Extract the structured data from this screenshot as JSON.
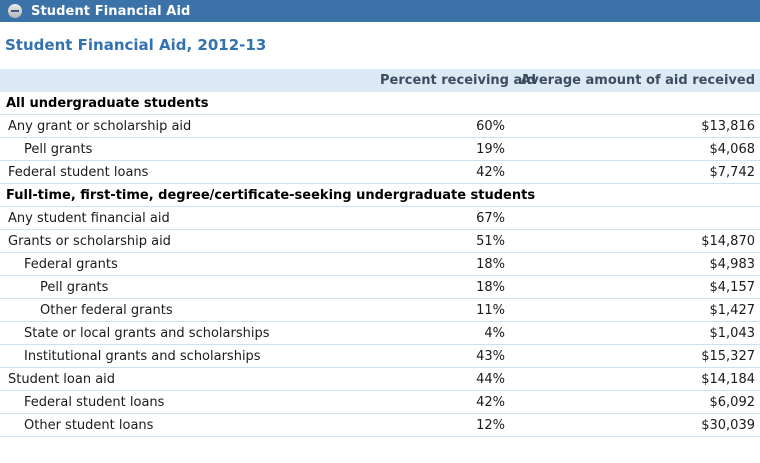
{
  "collapse_bar": {
    "label": "Student Financial Aid",
    "icon": "circle-minus-collapse-icon"
  },
  "page": {
    "title": "Student Financial Aid, 2012-13"
  },
  "colors": {
    "bar_background": "#3b72a8",
    "bar_text": "#ffffff",
    "title_text": "#3372b0",
    "table_header_background": "#dde9f4",
    "table_header_text": "#3d4d61",
    "row_border": "#cfe0ee",
    "row_text": "#1b1b1b"
  },
  "table": {
    "columns": [
      "",
      "Percent receiving aid",
      "Average amount of aid received"
    ],
    "rows": [
      {
        "type": "section",
        "label": "All undergraduate students"
      },
      {
        "type": "data",
        "indent": 0,
        "label": "Any grant or scholarship aid",
        "percent": "60%",
        "amount": "$13,816"
      },
      {
        "type": "data",
        "indent": 1,
        "label": "Pell grants",
        "percent": "19%",
        "amount": "$4,068"
      },
      {
        "type": "data",
        "indent": 0,
        "label": "Federal student loans",
        "percent": "42%",
        "amount": "$7,742"
      },
      {
        "type": "section",
        "label": "Full-time, first-time, degree/certificate-seeking undergraduate students"
      },
      {
        "type": "data",
        "indent": 0,
        "label": "Any student financial aid",
        "percent": "67%",
        "amount": ""
      },
      {
        "type": "data",
        "indent": 0,
        "label": "Grants or scholarship aid",
        "percent": "51%",
        "amount": "$14,870"
      },
      {
        "type": "data",
        "indent": 1,
        "label": "Federal grants",
        "percent": "18%",
        "amount": "$4,983"
      },
      {
        "type": "data",
        "indent": 2,
        "label": "Pell grants",
        "percent": "18%",
        "amount": "$4,157"
      },
      {
        "type": "data",
        "indent": 2,
        "label": "Other federal grants",
        "percent": "11%",
        "amount": "$1,427"
      },
      {
        "type": "data",
        "indent": 1,
        "label": "State or local grants and scholarships",
        "percent": "4%",
        "amount": "$1,043"
      },
      {
        "type": "data",
        "indent": 1,
        "label": "Institutional grants and scholarships",
        "percent": "43%",
        "amount": "$15,327"
      },
      {
        "type": "data",
        "indent": 0,
        "label": "Student loan aid",
        "percent": "44%",
        "amount": "$14,184"
      },
      {
        "type": "data",
        "indent": 1,
        "label": "Federal student loans",
        "percent": "42%",
        "amount": "$6,092"
      },
      {
        "type": "data",
        "indent": 1,
        "label": "Other student loans",
        "percent": "12%",
        "amount": "$30,039"
      }
    ]
  }
}
